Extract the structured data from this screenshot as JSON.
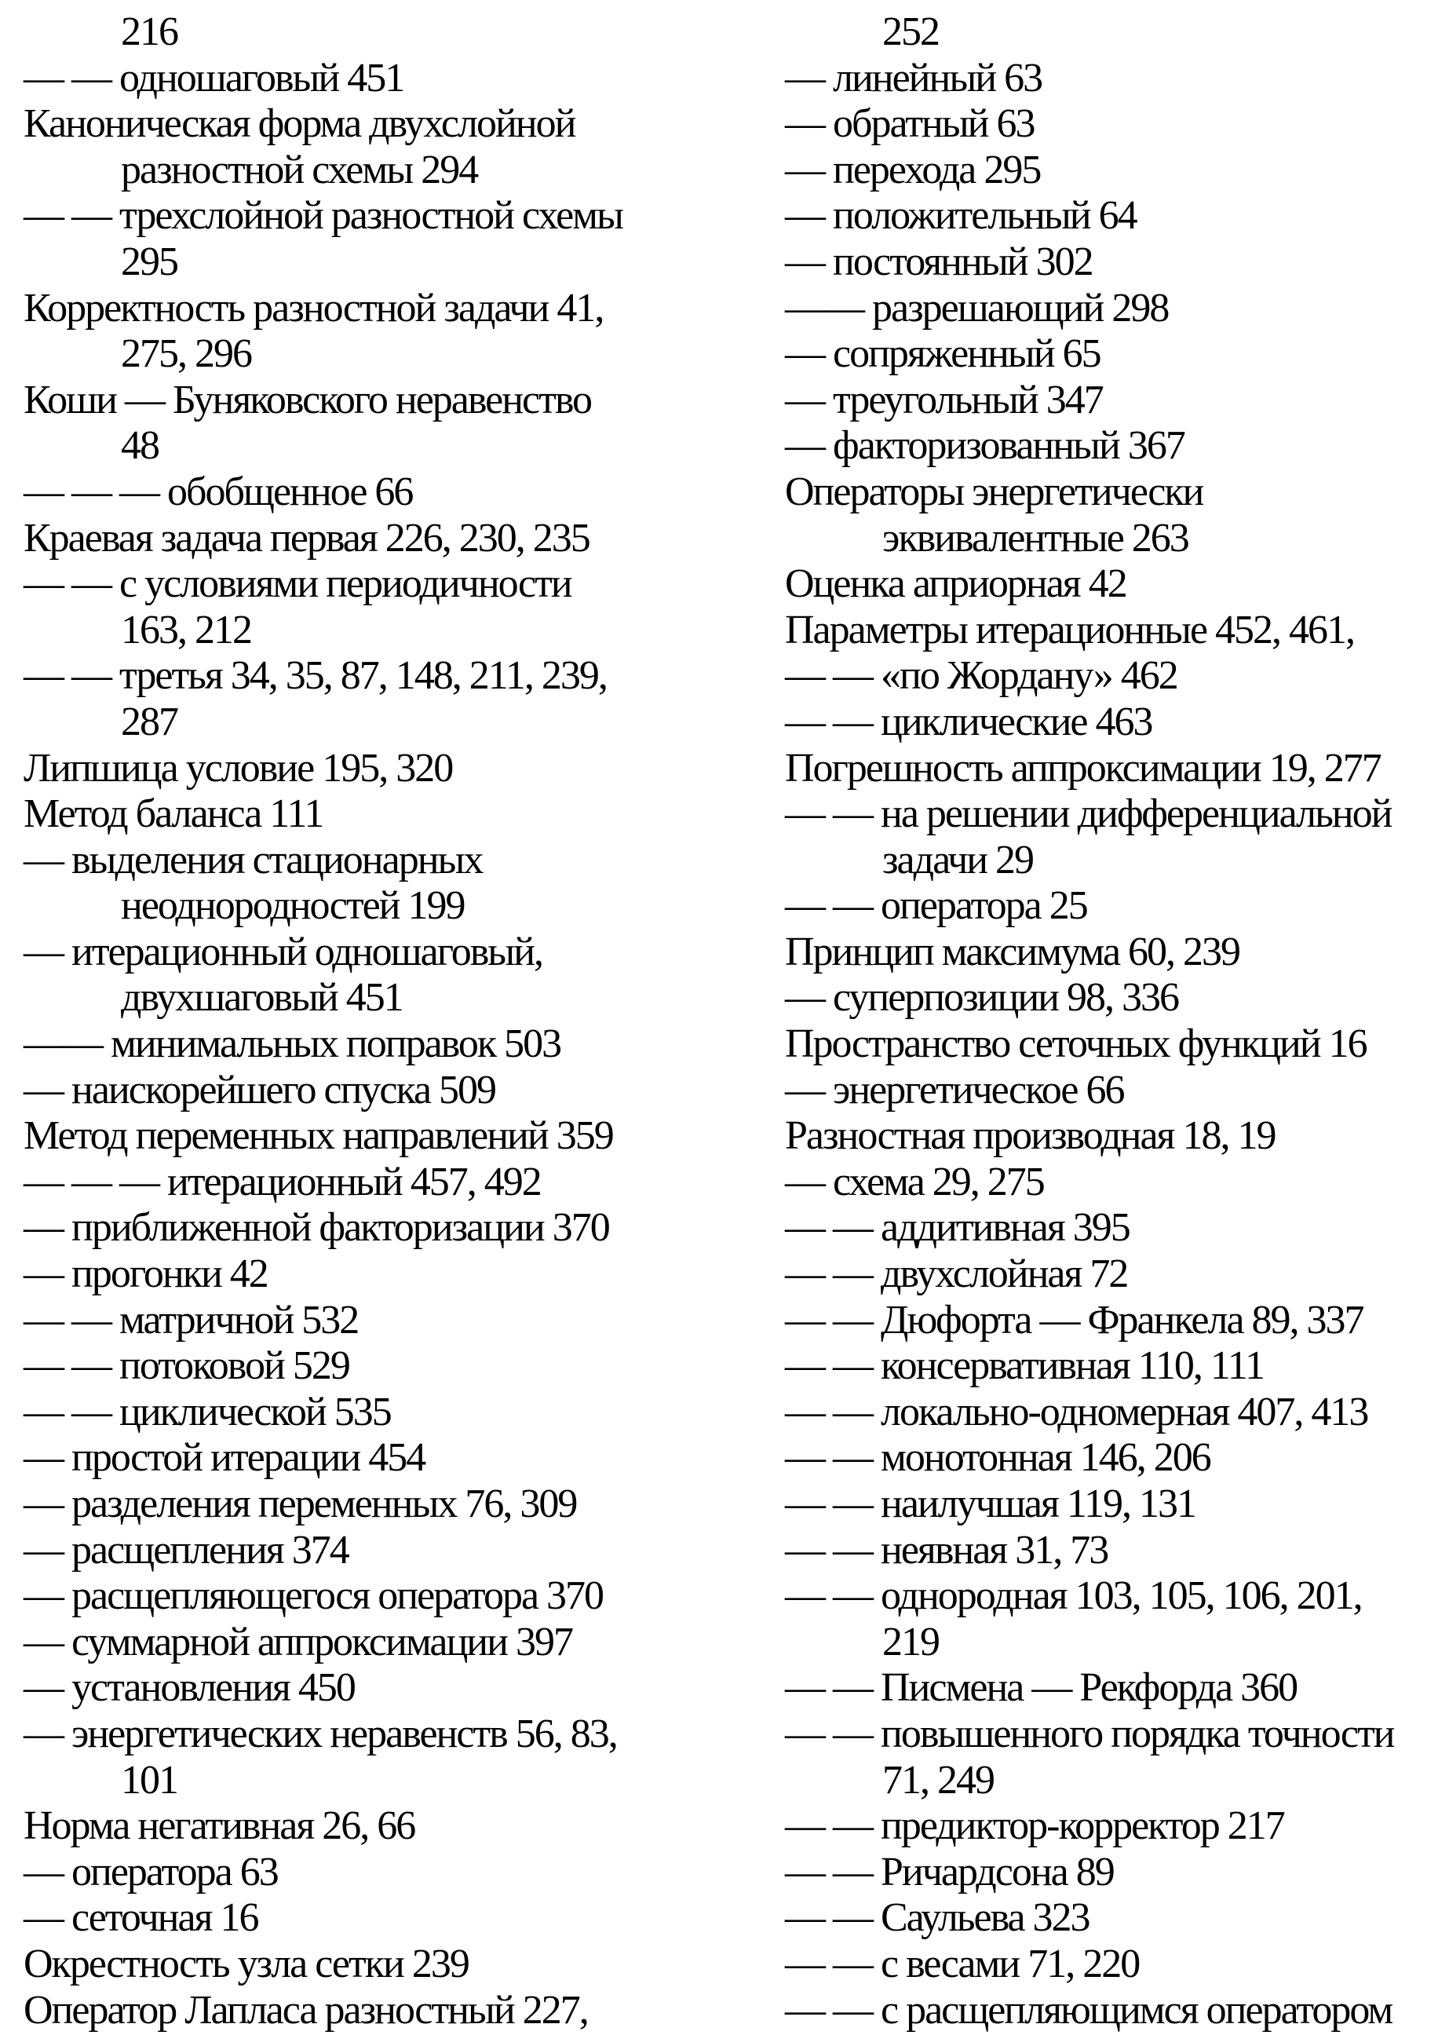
{
  "colors": {
    "text": "#000000",
    "background": "#ffffff"
  },
  "columns": [
    {
      "side": "left",
      "lines": [
        {
          "text": "216",
          "indent": true
        },
        {
          "text": "— — одношаговый 451",
          "indent": false
        },
        {
          "text": "Каноническая форма двухслойной",
          "indent": false
        },
        {
          "text": "разностной схемы 294",
          "indent": true
        },
        {
          "text": "— — трехслойной разностной схемы",
          "indent": false
        },
        {
          "text": "295",
          "indent": true
        },
        {
          "text": "Корректность разностной задачи 41,",
          "indent": false
        },
        {
          "text": "275, 296",
          "indent": true
        },
        {
          "text": "Коши — Буняковского неравенство",
          "indent": false
        },
        {
          "text": "48",
          "indent": true
        },
        {
          "text": "— — — обобщенное 66",
          "indent": false
        },
        {
          "text": "Краевая задача первая 226, 230, 235",
          "indent": false
        },
        {
          "text": "— — с условиями периодичности",
          "indent": false
        },
        {
          "text": "163, 212",
          "indent": true
        },
        {
          "text": "— — третья 34, 35, 87, 148, 211, 239,",
          "indent": false
        },
        {
          "text": "287",
          "indent": true
        },
        {
          "text": "Липшица условие 195, 320",
          "indent": false
        },
        {
          "text": "Метод баланса 111",
          "indent": false
        },
        {
          "text": "— выделения стационарных",
          "indent": false
        },
        {
          "text": "неоднородностей 199",
          "indent": true
        },
        {
          "text": "— итерационный одношаговый,",
          "indent": false
        },
        {
          "text": "двухшаговый 451",
          "indent": true
        },
        {
          "text": "—— минимальных поправок 503",
          "indent": false
        },
        {
          "text": "— наискорейшего спуска 509",
          "indent": false
        },
        {
          "text": "Метод переменных направлений 359",
          "indent": false
        },
        {
          "text": "— — — итерационный 457, 492",
          "indent": false
        },
        {
          "text": "— приближенной факторизации 370",
          "indent": false
        },
        {
          "text": "— прогонки 42",
          "indent": false
        },
        {
          "text": "— — матричной 532",
          "indent": false
        },
        {
          "text": "— — потоковой 529",
          "indent": false
        },
        {
          "text": "— — циклической 535",
          "indent": false
        },
        {
          "text": "— простой итерации 454",
          "indent": false
        },
        {
          "text": "— разделения переменных 76, 309",
          "indent": false
        },
        {
          "text": "— расщепления 374",
          "indent": false
        },
        {
          "text": "— расщепляющегося оператора 370",
          "indent": false
        },
        {
          "text": "— суммарной аппроксимации 397",
          "indent": false
        },
        {
          "text": "— установления 450",
          "indent": false
        },
        {
          "text": "— энергетических неравенств 56, 83,",
          "indent": false
        },
        {
          "text": "101",
          "indent": true
        },
        {
          "text": "Норма негативная 26, 66",
          "indent": false
        },
        {
          "text": "— оператора 63",
          "indent": false
        },
        {
          "text": "— сеточная 16",
          "indent": false
        },
        {
          "text": "Окрестность узла сетки 239",
          "indent": false
        },
        {
          "text": "Оператор Лапласа разностный 227,",
          "indent": false
        }
      ]
    },
    {
      "side": "right",
      "lines": [
        {
          "text": "252",
          "indent": true
        },
        {
          "text": "— линейный 63",
          "indent": false
        },
        {
          "text": "— обратный 63",
          "indent": false
        },
        {
          "text": "— перехода 295",
          "indent": false
        },
        {
          "text": "— положительный 64",
          "indent": false
        },
        {
          "text": "— постоянный 302",
          "indent": false
        },
        {
          "text": "—— разрешающий 298",
          "indent": false
        },
        {
          "text": "— сопряженный 65",
          "indent": false
        },
        {
          "text": "— треугольный 347",
          "indent": false
        },
        {
          "text": "— факторизованный 367",
          "indent": false
        },
        {
          "text": "Операторы энергетически",
          "indent": false
        },
        {
          "text": "эквивалентные 263",
          "indent": true
        },
        {
          "text": "Оценка априорная 42",
          "indent": false
        },
        {
          "text": "Параметры итерационные 452, 461,",
          "indent": false
        },
        {
          "text": "— — «по Жордану» 462",
          "indent": false
        },
        {
          "text": "— — циклические 463",
          "indent": false
        },
        {
          "text": "Погрешность аппроксимации 19, 277",
          "indent": false
        },
        {
          "text": "— — на решении дифференциальной",
          "indent": false
        },
        {
          "text": "задачи 29",
          "indent": true
        },
        {
          "text": "— — оператора 25",
          "indent": false
        },
        {
          "text": "Принцип максимума 60, 239",
          "indent": false
        },
        {
          "text": "— суперпозиции 98, 336",
          "indent": false
        },
        {
          "text": "Пространство сеточных функций 16",
          "indent": false
        },
        {
          "text": "— энергетическое 66",
          "indent": false
        },
        {
          "text": "Разностная производная 18, 19",
          "indent": false
        },
        {
          "text": "— схема 29, 275",
          "indent": false
        },
        {
          "text": "— — аддитивная 395",
          "indent": false
        },
        {
          "text": "— — двухслойная 72",
          "indent": false
        },
        {
          "text": "— — Дюфорта — Франкела 89, 337",
          "indent": false
        },
        {
          "text": "— — консервативная 110, 111",
          "indent": false
        },
        {
          "text": "— — локально-одномерная 407, 413",
          "indent": false
        },
        {
          "text": "— — монотонная 146, 206",
          "indent": false
        },
        {
          "text": "— — наилучшая 119, 131",
          "indent": false
        },
        {
          "text": "— — неявная 31, 73",
          "indent": false
        },
        {
          "text": "— — однородная 103, 105, 106, 201,",
          "indent": false
        },
        {
          "text": "219",
          "indent": true
        },
        {
          "text": "— — Писмена — Рекфорда 360",
          "indent": false
        },
        {
          "text": "— — повышенного порядка точности",
          "indent": false
        },
        {
          "text": "71, 249",
          "indent": true
        },
        {
          "text": "— — предиктор-корректор 217",
          "indent": false
        },
        {
          "text": "— — Ричардсона 89",
          "indent": false
        },
        {
          "text": "— — Саульева 323",
          "indent": false
        },
        {
          "text": "— — с весами 71, 220",
          "indent": false
        },
        {
          "text": "— — с расщепляющимся оператором",
          "indent": false
        }
      ]
    }
  ]
}
